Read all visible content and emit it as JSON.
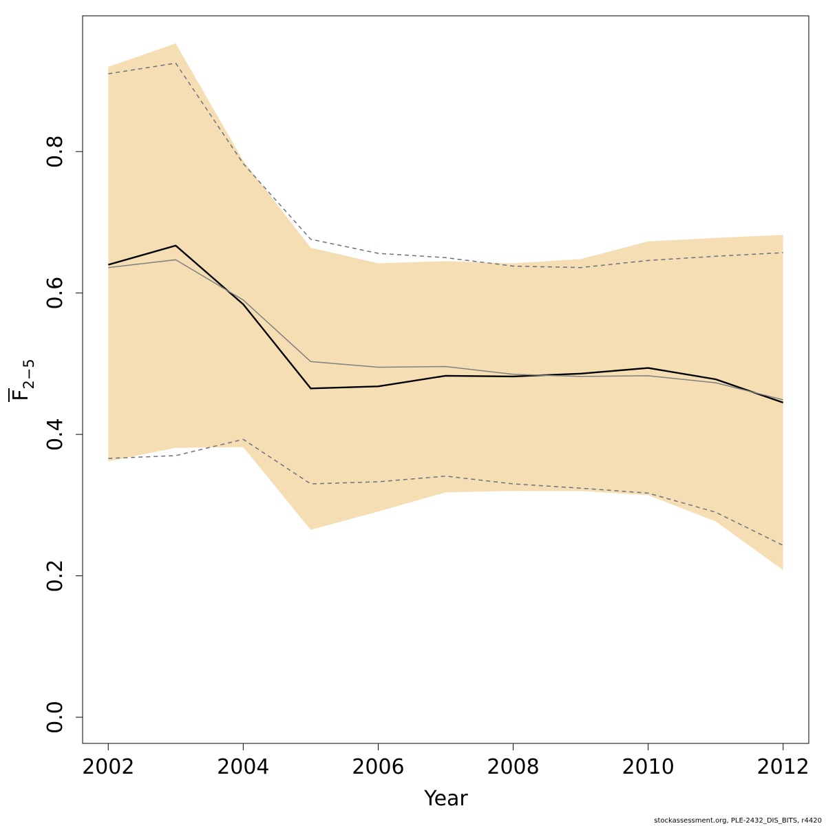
{
  "chart_data": {
    "type": "line",
    "xlabel": "Year",
    "ylabel": {
      "main": "F",
      "subscript": "2−5"
    },
    "x": [
      2002,
      2003,
      2004,
      2005,
      2006,
      2007,
      2008,
      2009,
      2010,
      2011,
      2012
    ],
    "x_ticks": [
      2002,
      2004,
      2006,
      2008,
      2010,
      2012
    ],
    "y_ticks": [
      0.0,
      0.2,
      0.4,
      0.6,
      0.8
    ],
    "y_tick_labels": [
      "0.0",
      "0.2",
      "0.4",
      "0.6",
      "0.8"
    ],
    "x_tick_labels": [
      "2002",
      "2004",
      "2006",
      "2008",
      "2010",
      "2012"
    ],
    "xlim": [
      2001.62,
      2012.38
    ],
    "ylim": [
      -0.037,
      0.992
    ],
    "grid": false,
    "legend": "none",
    "band": {
      "color": "#F5DEB3",
      "lower": [
        0.362,
        0.381,
        0.382,
        0.265,
        0.291,
        0.318,
        0.32,
        0.32,
        0.314,
        0.277,
        0.208
      ],
      "upper": [
        0.92,
        0.953,
        0.787,
        0.664,
        0.642,
        0.645,
        0.642,
        0.648,
        0.673,
        0.678,
        0.682
      ]
    },
    "series": [
      {
        "color": "#000000",
        "style": "solid",
        "values": [
          0.64,
          0.667,
          0.584,
          0.465,
          0.468,
          0.483,
          0.482,
          0.486,
          0.494,
          0.478,
          0.445
        ]
      },
      {
        "color": "#7f7f7f",
        "style": "solid",
        "values": [
          0.636,
          0.647,
          0.59,
          0.503,
          0.495,
          0.496,
          0.485,
          0.482,
          0.483,
          0.473,
          0.449
        ]
      },
      {
        "color": "#6b7080",
        "style": "dashed",
        "values": [
          0.91,
          0.925,
          0.783,
          0.676,
          0.656,
          0.65,
          0.638,
          0.636,
          0.646,
          0.652,
          0.657
        ]
      },
      {
        "color": "#6b7080",
        "style": "dashed",
        "values": [
          0.366,
          0.37,
          0.393,
          0.33,
          0.333,
          0.341,
          0.33,
          0.324,
          0.317,
          0.29,
          0.243
        ]
      }
    ]
  },
  "footer": {
    "credit": "stockassessment.org, PLE-2432_DIS_BITS, r4420"
  },
  "colors": {
    "frame": "#000000",
    "band": "#F5DEB3",
    "axis": "#000000"
  }
}
